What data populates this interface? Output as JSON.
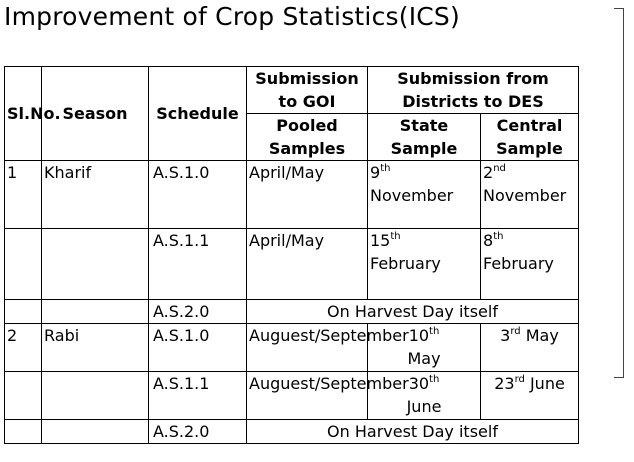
{
  "title": "Improvement of Crop Statistics(ICS)",
  "headers": {
    "slno": "Sl.No.",
    "season": "Season",
    "schedule": "Schedule",
    "goi": "Submission to GOI",
    "districts": "Submission from Districts to DES",
    "pooled": "Pooled Samples",
    "state": "State Sample",
    "central": "Central Sample"
  },
  "rows": [
    {
      "sl": "1",
      "season": "Kharif",
      "schedule": "A.S.1.0",
      "goi": "April/May",
      "state_num": "9",
      "state_sup": "th",
      "state_rest": "November",
      "central_num": "2",
      "central_sup": "nd",
      "central_rest": "November"
    },
    {
      "schedule": "A.S.1.1",
      "goi": "April/May",
      "state_num": "15",
      "state_sup": "th",
      "state_rest": "February",
      "central_num": "8",
      "central_sup": "th",
      "central_rest": "February"
    },
    {
      "schedule": "A.S.2.0",
      "merged": "On Harvest Day itself"
    },
    {
      "sl": "2",
      "season": "Rabi",
      "schedule": "A.S.1.0",
      "goi": "Auguest/September",
      "state_num": "10",
      "state_sup": "th",
      "state_rest": "May",
      "central_num": "3",
      "central_sup": "rd",
      "central_rest": "May"
    },
    {
      "schedule": "A.S.1.1",
      "goi": "Auguest/September",
      "state_num": "30",
      "state_sup": "th",
      "state_rest": "June",
      "central_num": "23",
      "central_sup": "rd",
      "central_rest": "June"
    },
    {
      "schedule": "A.S.2.0",
      "merged": "On Harvest Day itself"
    }
  ]
}
